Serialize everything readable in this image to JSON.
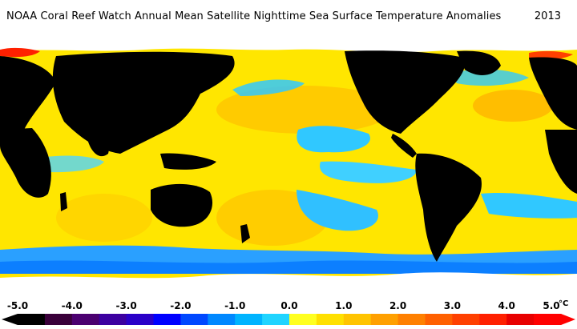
{
  "title": "NOAA Coral Reef Watch Annual Mean Satellite Nighttime Sea Surface Temperature Anomalies",
  "year": "2013",
  "legend": {
    "unit": "°C",
    "tick_labels": [
      "-5.0",
      "-4.0",
      "-3.0",
      "-2.0",
      "-1.0",
      "0.0",
      "1.0",
      "2.0",
      "3.0",
      "4.0",
      "5.0"
    ],
    "min": -5.0,
    "max": 5.0,
    "colors": [
      "#000000",
      "#3a003a",
      "#4b0070",
      "#3c00a0",
      "#2a00c8",
      "#0000ff",
      "#0048ff",
      "#0088ff",
      "#00b4ff",
      "#20d4ff",
      "#ffff20",
      "#ffe000",
      "#ffc400",
      "#ffa000",
      "#ff8000",
      "#ff6000",
      "#ff4000",
      "#ff2000",
      "#e80000",
      "#ff0000"
    ]
  },
  "map": {
    "ocean_base_color": "#ffe800",
    "warm_color": "#ffc000",
    "hot_color": "#ff8c00",
    "cool_color": "#30c8ff",
    "cold_color": "#0090ff",
    "land_color": "#000000",
    "ice_color": "#ffffff"
  }
}
